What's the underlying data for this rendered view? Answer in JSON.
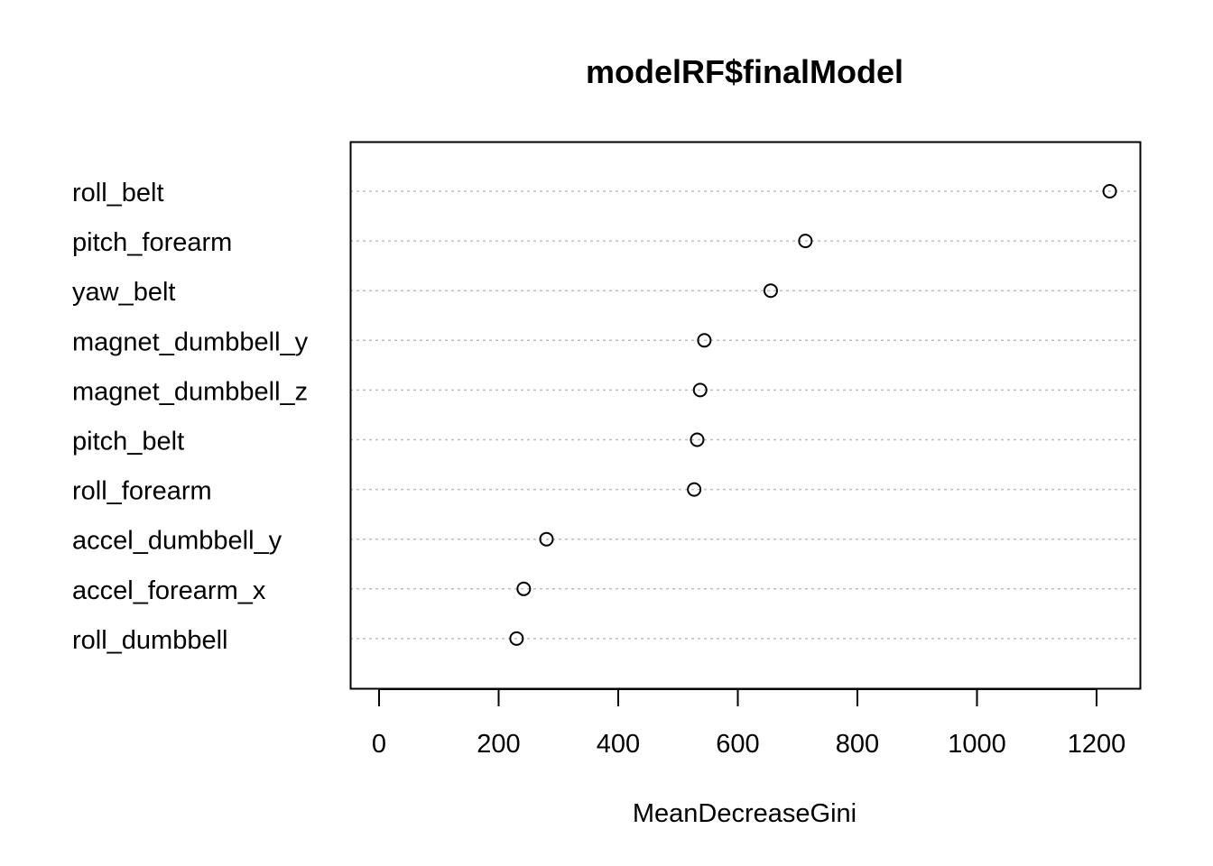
{
  "chart_data": {
    "type": "dotchart",
    "title": "modelRF$finalModel",
    "xlabel": "MeanDecreaseGini",
    "ylabel": "",
    "xlim": [
      -50,
      1270
    ],
    "xticks": [
      0,
      200,
      400,
      600,
      800,
      1000,
      1200
    ],
    "grid": "dotted horizontal lines per category",
    "legend": "none",
    "categories": [
      "roll_belt",
      "pitch_forearm",
      "yaw_belt",
      "magnet_dumbbell_y",
      "magnet_dumbbell_z",
      "pitch_belt",
      "roll_forearm",
      "accel_dumbbell_y",
      "accel_forearm_x",
      "roll_dumbbell"
    ],
    "values": [
      1222,
      713,
      655,
      544,
      537,
      532,
      527,
      280,
      242,
      230
    ],
    "colors": {
      "points": "#000000",
      "grid": "#bebebe",
      "frame": "#000000"
    }
  }
}
